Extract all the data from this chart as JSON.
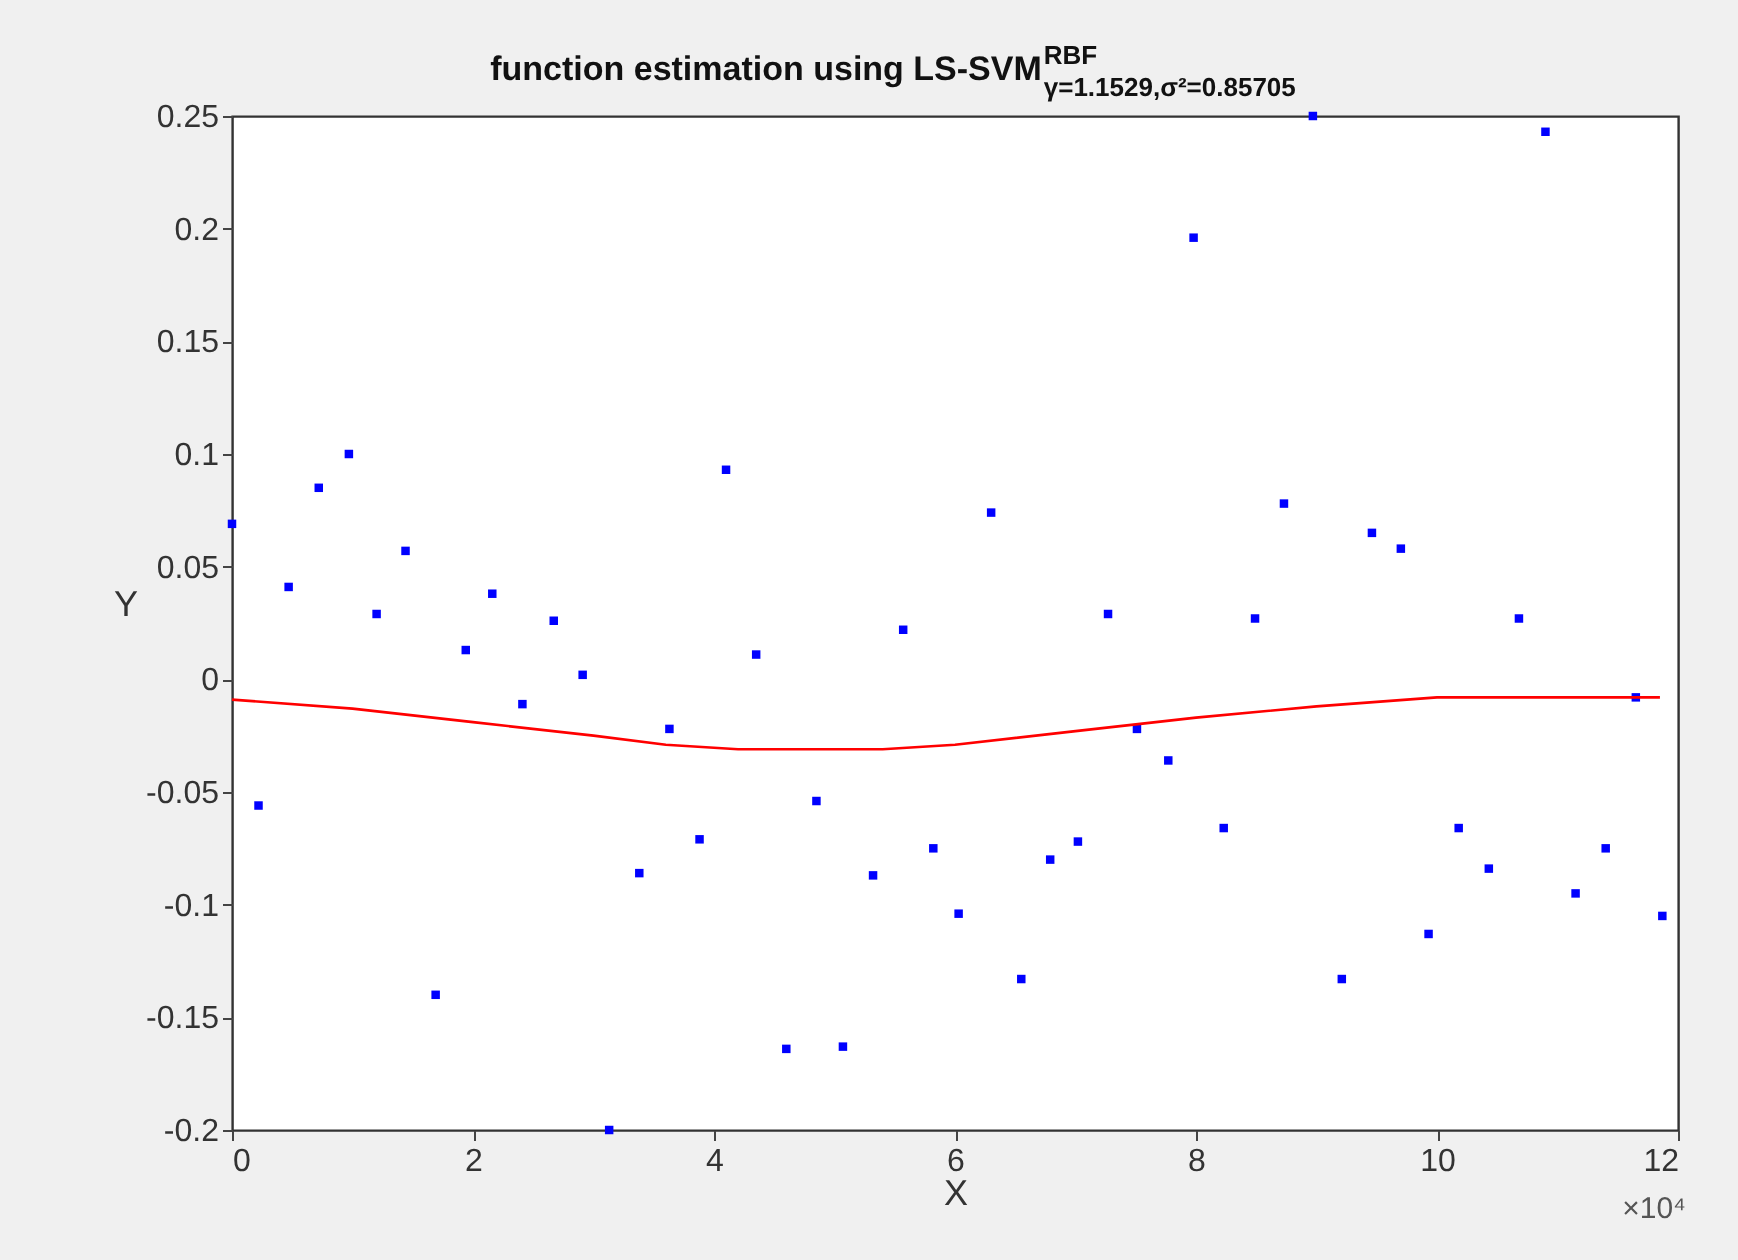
{
  "chart_data": {
    "type": "scatter",
    "title": "function estimation using  LS-SVM$^{RBF}$$_{γ=1.1529,σ²=0.85705}$",
    "xlabel": "X",
    "ylabel": "Y",
    "annotations": [
      "×10⁴"
    ],
    "xlim": [
      0,
      12
    ],
    "xticks": [
      0,
      2,
      4,
      6,
      8,
      10,
      12
    ],
    "ylim": [
      -0.2,
      0.25
    ],
    "yticks": [
      -0.2,
      -0.15,
      -0.1,
      -0.05,
      0,
      0.05,
      0.1,
      0.15,
      0.2,
      0.25
    ],
    "grid": false,
    "marker": "square",
    "series": [
      {
        "color": "#0000ff",
        "x": [
          0,
          0.22,
          0.47,
          0.72,
          0.97,
          1.2,
          1.44,
          1.69,
          1.94,
          2.16,
          2.41,
          2.67,
          2.91,
          3.13,
          3.38,
          3.63,
          3.88,
          4.1,
          4.35,
          4.6,
          4.85,
          5.07,
          5.32,
          5.57,
          5.82,
          6.03,
          6.3,
          6.55,
          6.79,
          7.02,
          7.27,
          7.51,
          7.77,
          7.98,
          8.23,
          8.49,
          8.73,
          8.97,
          9.21,
          9.46,
          9.7,
          9.93,
          10.18,
          10.43,
          10.68,
          10.9,
          11.15,
          11.4,
          11.65,
          11.87
        ],
        "values": [
          0.069,
          -0.056,
          0.041,
          0.085,
          0.1,
          0.029,
          0.057,
          -0.14,
          0.013,
          0.038,
          -0.011,
          0.026,
          0.002,
          -0.2,
          -0.086,
          -0.022,
          -0.071,
          0.093,
          0.011,
          -0.164,
          -0.054,
          -0.163,
          -0.087,
          0.022,
          -0.075,
          -0.104,
          0.074,
          -0.133,
          -0.08,
          -0.072,
          0.029,
          -0.022,
          -0.036,
          0.196,
          -0.066,
          0.027,
          0.078,
          0.25,
          -0.133,
          0.065,
          0.058,
          -0.113,
          -0.066,
          -0.084,
          0.027,
          0.243,
          -0.095,
          -0.075,
          -0.008,
          -0.105
        ]
      },
      {
        "type": "line",
        "color": "#ff0000",
        "marker": "none",
        "line_style": "solid",
        "x": [
          0,
          1,
          2,
          3,
          3.6,
          4.2,
          5.4,
          6,
          7,
          8,
          9,
          10,
          11.85
        ],
        "values": [
          -0.009,
          -0.013,
          -0.019,
          -0.025,
          -0.029,
          -0.031,
          -0.031,
          -0.029,
          -0.023,
          -0.017,
          -0.012,
          -0.008,
          -0.008
        ]
      }
    ]
  }
}
